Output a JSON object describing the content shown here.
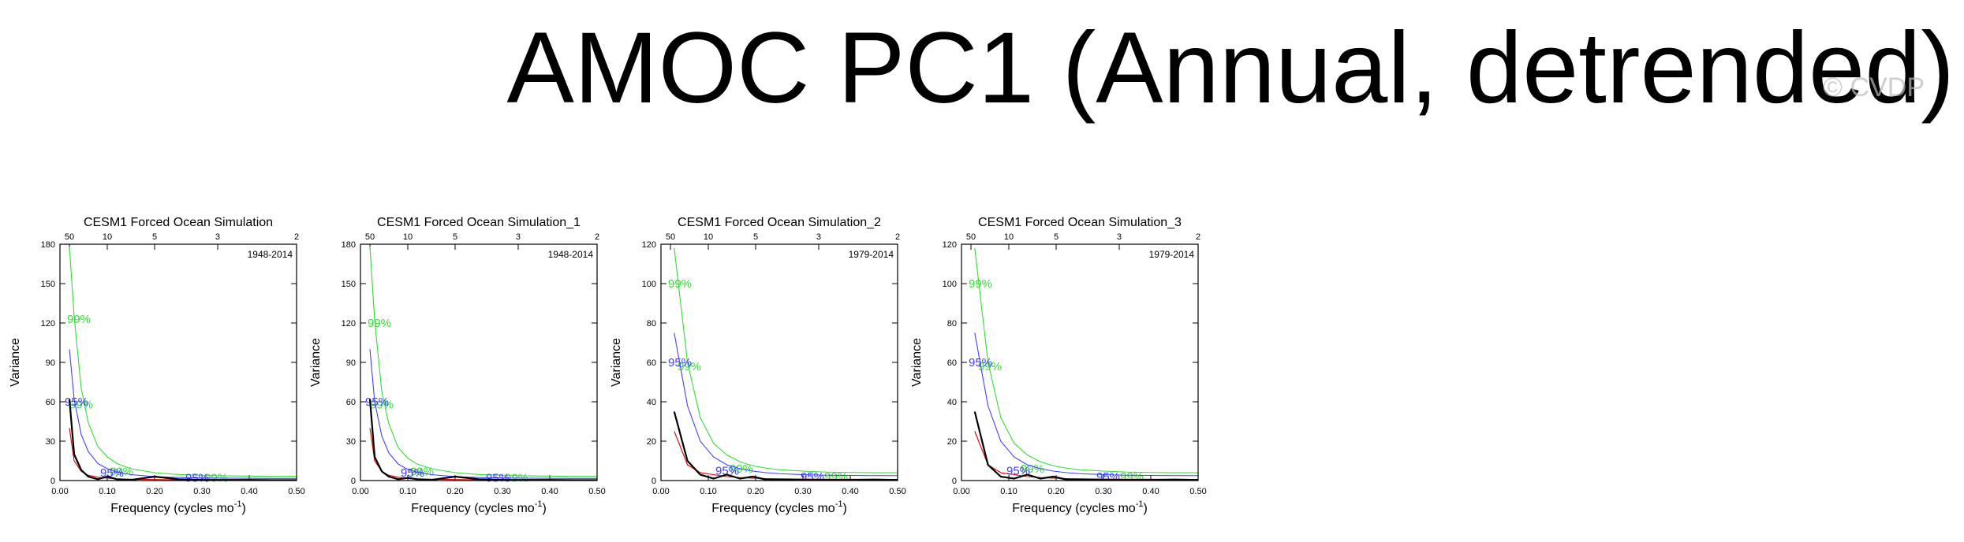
{
  "title": "AMOC PC1 (Annual, detrended)",
  "watermark": "© CVDP",
  "chart_data": [
    {
      "type": "line",
      "title": "CESM1 Forced Ocean Simulation",
      "subtitle": "1948-2014",
      "ylabel": "Variance",
      "xlabel": "Frequency (cycles mo",
      "xlabel_sup": "-1",
      "xlabel_end": ")",
      "x": [
        0.02,
        0.03,
        0.045,
        0.06,
        0.08,
        0.1,
        0.12,
        0.15,
        0.2,
        0.25,
        0.3,
        0.35,
        0.4,
        0.45,
        0.5
      ],
      "xlim": [
        0,
        0.5
      ],
      "xticks": [
        {
          "value": 0,
          "label": "0.00"
        },
        {
          "value": 0.1,
          "label": "0.10"
        },
        {
          "value": 0.2,
          "label": "0.20"
        },
        {
          "value": 0.3,
          "label": "0.30"
        },
        {
          "value": 0.4,
          "label": "0.40"
        },
        {
          "value": 0.5,
          "label": "0.50"
        }
      ],
      "x2ticks": [
        {
          "value": 0.02,
          "label": "50"
        },
        {
          "value": 0.1,
          "label": "10"
        },
        {
          "value": 0.2,
          "label": "5"
        },
        {
          "value": 0.3333,
          "label": "3"
        },
        {
          "value": 0.5,
          "label": "2"
        }
      ],
      "ylim": [
        0,
        180
      ],
      "yticks": [
        0,
        30,
        60,
        90,
        120,
        150,
        180
      ],
      "series": [
        {
          "color": "#33dd33",
          "values": [
            178,
            125,
            70,
            44,
            26,
            18,
            13,
            9,
            6,
            4.6,
            4,
            3.6,
            3.4,
            3.2,
            3.2
          ],
          "labels": [
            {
              "text": "99%",
              "x": 0.04,
              "y": 123
            },
            {
              "text": "99%",
              "x": 0.045,
              "y": 58
            },
            {
              "text": "99%",
              "x": 0.13,
              "y": 7
            },
            {
              "text": "99%",
              "x": 0.33,
              "y": 2
            }
          ]
        },
        {
          "color": "#4040ff",
          "values": [
            100,
            62,
            35,
            22,
            13,
            9,
            6.5,
            4.5,
            3,
            2.3,
            2,
            1.8,
            1.7,
            1.6,
            1.6
          ],
          "labels": [
            {
              "text": "95%",
              "x": 0.035,
              "y": 60
            },
            {
              "text": "95%",
              "x": 0.11,
              "y": 6
            },
            {
              "text": "95%",
              "x": 0.29,
              "y": 2
            }
          ]
        },
        {
          "color": "#e00000",
          "values": [
            40,
            15,
            7,
            4,
            2.5,
            1.8,
            1.3,
            1,
            0.8,
            0.6,
            0.5,
            0.5,
            0.4,
            0.4,
            0.4
          ]
        },
        {
          "color": "#000000",
          "values": [
            62,
            20,
            8,
            3,
            1,
            3,
            1,
            0.5,
            3,
            1,
            0.5,
            0.5,
            0.5,
            0.3,
            0.3
          ]
        }
      ]
    },
    {
      "type": "line",
      "title": "CESM1 Forced Ocean Simulation_1",
      "subtitle": "1948-2014",
      "ylabel": "Variance",
      "xlabel": "Frequency (cycles mo",
      "xlabel_sup": "-1",
      "xlabel_end": ")",
      "x": [
        0.02,
        0.03,
        0.045,
        0.06,
        0.08,
        0.1,
        0.12,
        0.15,
        0.2,
        0.25,
        0.3,
        0.35,
        0.4,
        0.45,
        0.5
      ],
      "xlim": [
        0,
        0.5
      ],
      "xticks": [
        {
          "value": 0,
          "label": "0.00"
        },
        {
          "value": 0.1,
          "label": "0.10"
        },
        {
          "value": 0.2,
          "label": "0.20"
        },
        {
          "value": 0.3,
          "label": "0.30"
        },
        {
          "value": 0.4,
          "label": "0.40"
        },
        {
          "value": 0.5,
          "label": "0.50"
        }
      ],
      "x2ticks": [
        {
          "value": 0.02,
          "label": "50"
        },
        {
          "value": 0.1,
          "label": "10"
        },
        {
          "value": 0.2,
          "label": "5"
        },
        {
          "value": 0.3333,
          "label": "3"
        },
        {
          "value": 0.5,
          "label": "2"
        }
      ],
      "ylim": [
        0,
        180
      ],
      "yticks": [
        0,
        30,
        60,
        90,
        120,
        150,
        180
      ],
      "series": [
        {
          "color": "#33dd33",
          "values": [
            178,
            122,
            68,
            43,
            25,
            17,
            12.5,
            9,
            6,
            4.6,
            4,
            3.6,
            3.4,
            3.2,
            3.2
          ],
          "labels": [
            {
              "text": "99%",
              "x": 0.04,
              "y": 120
            },
            {
              "text": "99%",
              "x": 0.045,
              "y": 58
            },
            {
              "text": "99%",
              "x": 0.13,
              "y": 7
            },
            {
              "text": "99%",
              "x": 0.33,
              "y": 2
            }
          ]
        },
        {
          "color": "#4040ff",
          "values": [
            100,
            60,
            34,
            21,
            12.5,
            8.5,
            6.3,
            4.5,
            3,
            2.3,
            2,
            1.8,
            1.7,
            1.6,
            1.6
          ],
          "labels": [
            {
              "text": "95%",
              "x": 0.035,
              "y": 60
            },
            {
              "text": "95%",
              "x": 0.11,
              "y": 6
            },
            {
              "text": "95%",
              "x": 0.29,
              "y": 2
            }
          ]
        },
        {
          "color": "#e00000",
          "values": [
            40,
            15,
            7,
            4,
            2.5,
            1.8,
            1.3,
            1,
            0.8,
            0.6,
            0.5,
            0.5,
            0.4,
            0.4,
            0.4
          ]
        },
        {
          "color": "#000000",
          "values": [
            62,
            18,
            7,
            3,
            1,
            2,
            1,
            0.5,
            3,
            1,
            0.5,
            0.5,
            0.5,
            0.3,
            0.3
          ]
        }
      ]
    },
    {
      "type": "line",
      "title": "CESM1 Forced Ocean Simulation_2",
      "subtitle": "1979-2014",
      "ylabel": "Variance",
      "xlabel": "Frequency (cycles mo",
      "xlabel_sup": "-1",
      "xlabel_end": ")",
      "x": [
        0.028,
        0.056,
        0.083,
        0.111,
        0.139,
        0.167,
        0.194,
        0.222,
        0.25,
        0.3,
        0.35,
        0.4,
        0.45,
        0.5
      ],
      "xlim": [
        0,
        0.5
      ],
      "xticks": [
        {
          "value": 0,
          "label": "0.00"
        },
        {
          "value": 0.1,
          "label": "0.10"
        },
        {
          "value": 0.2,
          "label": "0.20"
        },
        {
          "value": 0.3,
          "label": "0.30"
        },
        {
          "value": 0.4,
          "label": "0.40"
        },
        {
          "value": 0.5,
          "label": "0.50"
        }
      ],
      "x2ticks": [
        {
          "value": 0.02,
          "label": "50"
        },
        {
          "value": 0.1,
          "label": "10"
        },
        {
          "value": 0.2,
          "label": "5"
        },
        {
          "value": 0.3333,
          "label": "3"
        },
        {
          "value": 0.5,
          "label": "2"
        }
      ],
      "ylim": [
        0,
        120
      ],
      "yticks": [
        0,
        20,
        40,
        60,
        80,
        100,
        120
      ],
      "series": [
        {
          "color": "#33dd33",
          "values": [
            118,
            60,
            32,
            19,
            13,
            9.5,
            7.5,
            6.3,
            5.5,
            4.8,
            4.3,
            4.1,
            4,
            4
          ],
          "labels": [
            {
              "text": "99%",
              "x": 0.04,
              "y": 100
            },
            {
              "text": "99%",
              "x": 0.06,
              "y": 58
            },
            {
              "text": "99%",
              "x": 0.17,
              "y": 6
            },
            {
              "text": "99%",
              "x": 0.37,
              "y": 2
            }
          ]
        },
        {
          "color": "#4040ff",
          "values": [
            75,
            38,
            20,
            12,
            8,
            6,
            4.8,
            4,
            3.5,
            3,
            2.7,
            2.6,
            2.5,
            2.5
          ],
          "labels": [
            {
              "text": "95%",
              "x": 0.04,
              "y": 60
            },
            {
              "text": "95%",
              "x": 0.14,
              "y": 5
            },
            {
              "text": "95%",
              "x": 0.32,
              "y": 2
            }
          ]
        },
        {
          "color": "#e00000",
          "values": [
            25,
            8,
            4,
            3,
            2,
            1.5,
            1.2,
            1,
            0.9,
            0.8,
            0.7,
            0.7,
            0.6,
            0.6
          ]
        },
        {
          "color": "#000000",
          "values": [
            35,
            10,
            3,
            1,
            3,
            1,
            2,
            0.5,
            0.5,
            0.3,
            0.3,
            0.3,
            0.5,
            0.3
          ]
        }
      ]
    },
    {
      "type": "line",
      "title": "CESM1 Forced Ocean Simulation_3",
      "subtitle": "1979-2014",
      "ylabel": "Variance",
      "xlabel": "Frequency (cycles mo",
      "xlabel_sup": "-1",
      "xlabel_end": ")",
      "x": [
        0.028,
        0.056,
        0.083,
        0.111,
        0.139,
        0.167,
        0.194,
        0.222,
        0.25,
        0.3,
        0.35,
        0.4,
        0.45,
        0.5
      ],
      "xlim": [
        0,
        0.5
      ],
      "xticks": [
        {
          "value": 0,
          "label": "0.00"
        },
        {
          "value": 0.1,
          "label": "0.10"
        },
        {
          "value": 0.2,
          "label": "0.20"
        },
        {
          "value": 0.3,
          "label": "0.30"
        },
        {
          "value": 0.4,
          "label": "0.40"
        },
        {
          "value": 0.5,
          "label": "0.50"
        }
      ],
      "x2ticks": [
        {
          "value": 0.02,
          "label": "50"
        },
        {
          "value": 0.1,
          "label": "10"
        },
        {
          "value": 0.2,
          "label": "5"
        },
        {
          "value": 0.3333,
          "label": "3"
        },
        {
          "value": 0.5,
          "label": "2"
        }
      ],
      "ylim": [
        0,
        120
      ],
      "yticks": [
        0,
        20,
        40,
        60,
        80,
        100,
        120
      ],
      "series": [
        {
          "color": "#33dd33",
          "values": [
            118,
            60,
            32,
            19,
            13,
            9.5,
            7.5,
            6.3,
            5.5,
            4.8,
            4.3,
            4.1,
            4,
            4
          ],
          "labels": [
            {
              "text": "99%",
              "x": 0.04,
              "y": 100
            },
            {
              "text": "99%",
              "x": 0.06,
              "y": 58
            },
            {
              "text": "99%",
              "x": 0.15,
              "y": 6
            },
            {
              "text": "99%",
              "x": 0.36,
              "y": 2
            }
          ]
        },
        {
          "color": "#4040ff",
          "values": [
            75,
            38,
            20,
            12,
            8,
            6,
            4.8,
            4,
            3.5,
            3,
            2.7,
            2.6,
            2.5,
            2.5
          ],
          "labels": [
            {
              "text": "95%",
              "x": 0.04,
              "y": 60
            },
            {
              "text": "95%",
              "x": 0.12,
              "y": 5
            },
            {
              "text": "95%",
              "x": 0.31,
              "y": 2
            }
          ]
        },
        {
          "color": "#e00000",
          "values": [
            25,
            8,
            4,
            3,
            2,
            1.5,
            1.2,
            1,
            0.9,
            0.8,
            0.7,
            0.7,
            0.6,
            0.6
          ]
        },
        {
          "color": "#000000",
          "values": [
            35,
            8,
            2,
            1,
            3,
            1,
            2,
            0.5,
            0.5,
            0.3,
            0.3,
            0.3,
            0.5,
            0.3
          ]
        }
      ]
    }
  ]
}
